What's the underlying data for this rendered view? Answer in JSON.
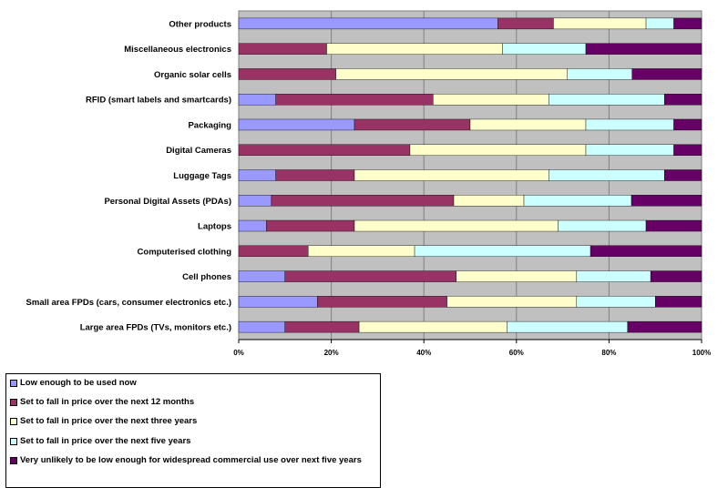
{
  "chart_data": {
    "type": "bar",
    "orientation": "horizontal",
    "stacked": "percent",
    "categories": [
      "Other products",
      "Miscellaneous electronics",
      "Organic solar cells",
      "RFID (smart labels and smartcards)",
      "Packaging",
      "Digital Cameras",
      "Luggage Tags",
      "Personal Digital Assets (PDAs)",
      "Laptops",
      "Computerised clothing",
      "Cell phones",
      "Small area FPDs (cars, consumer electronics etc.)",
      "Large area FPDs (TVs, monitors etc.)"
    ],
    "series": [
      {
        "name": "Low enough to be used now",
        "color": "#9999FF",
        "values": [
          56,
          0,
          0,
          8,
          25,
          0,
          8,
          7,
          6,
          0,
          10,
          17,
          10
        ]
      },
      {
        "name": "Set to fall in price over the next 12 months",
        "color": "#993366",
        "values": [
          12,
          19,
          21,
          34,
          25,
          37,
          17,
          39,
          19,
          15,
          37,
          28,
          16
        ]
      },
      {
        "name": "Set to fall in price over the next three years",
        "color": "#FFFFCC",
        "values": [
          20,
          38,
          50,
          25,
          25,
          38,
          42,
          15,
          44,
          23,
          26,
          28,
          32
        ]
      },
      {
        "name": "Set to fall in price over the next five years",
        "color": "#CCFFFF",
        "values": [
          6,
          18,
          14,
          25,
          19,
          19,
          25,
          23,
          19,
          38,
          16,
          17,
          26
        ]
      },
      {
        "name": "Very unlikely to be low enough for widespread commercial use over next five years",
        "color": "#660066",
        "values": [
          6,
          25,
          15,
          8,
          6,
          6,
          8,
          15,
          12,
          24,
          11,
          10,
          16
        ]
      }
    ],
    "xlim": [
      0,
      100
    ],
    "ticks": [
      "0%",
      "20%",
      "40%",
      "60%",
      "80%",
      "100%"
    ],
    "grid": true,
    "legend_position": "bottom-left"
  }
}
